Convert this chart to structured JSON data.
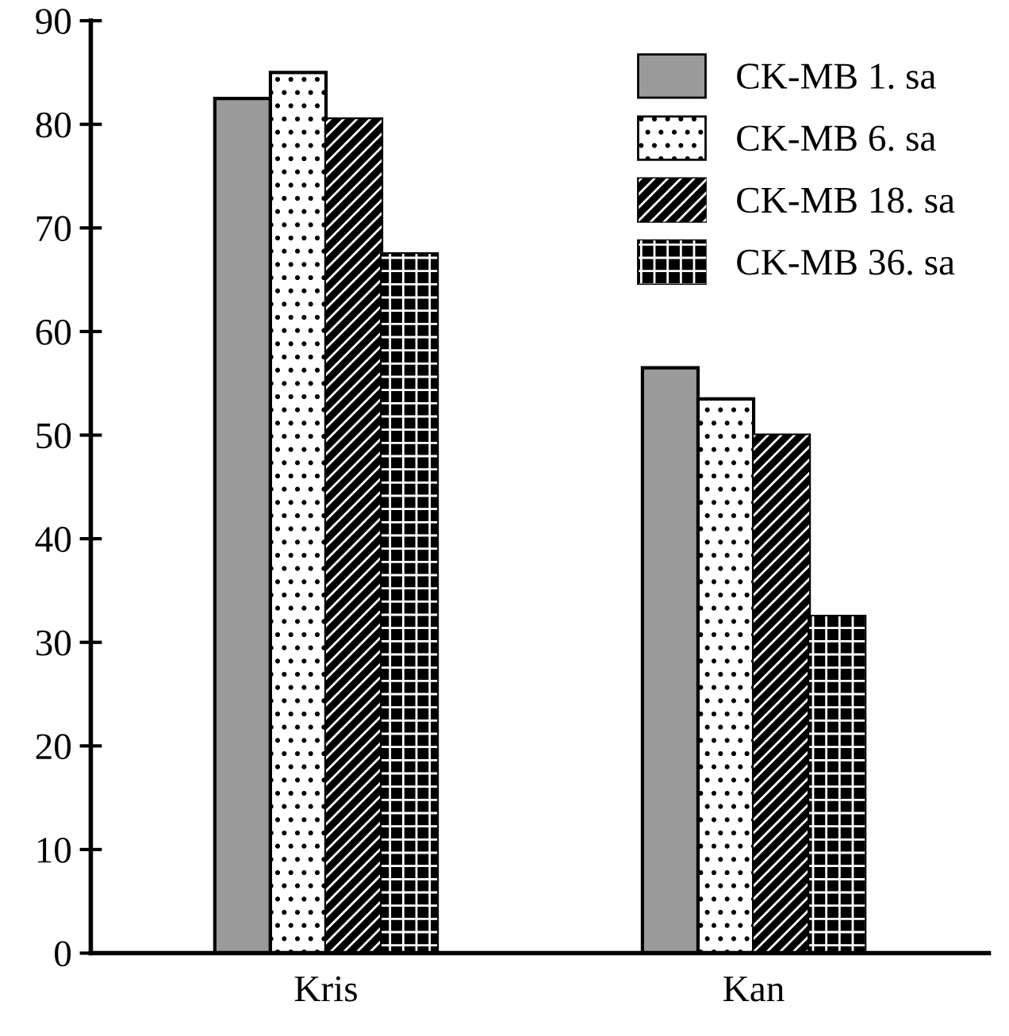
{
  "chart_data": {
    "type": "bar",
    "categories": [
      "Kris",
      "Kan"
    ],
    "series": [
      {
        "name": "CK-MB 1. sa",
        "color": "#9a9a9a",
        "values": [
          82.5,
          56.5
        ]
      },
      {
        "name": "CK-MB 6. sa",
        "color": "#ffffff",
        "values": [
          85,
          53.5
        ]
      },
      {
        "name": "CK-MB 18. sa",
        "color": "#000000",
        "values": [
          80.5,
          50
        ]
      },
      {
        "name": "CK-MB 36. sa",
        "color": "#000000",
        "values": [
          67.5,
          32.5
        ]
      }
    ],
    "ylim": [
      0,
      90
    ],
    "yticks": [
      0,
      10,
      20,
      30,
      40,
      50,
      60,
      70,
      80,
      90
    ],
    "grid": false,
    "legend": "top right"
  }
}
